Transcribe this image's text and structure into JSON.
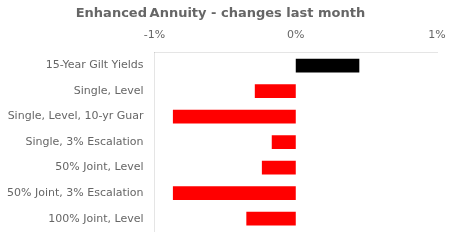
{
  "chart_data": {
    "type": "bar",
    "orientation": "horizontal",
    "title": "Enhanced Annuity - changes last month",
    "categories": [
      "100% Joint, Level",
      "50% Joint, 3% Escalation",
      "50% Joint, Level",
      "Single, 3% Escalation",
      "Single, Level, 10-yr Guar",
      "Single, Level",
      "15-Year Gilt Yields"
    ],
    "values": [
      -0.35,
      -0.87,
      -0.24,
      -0.17,
      -0.87,
      -0.29,
      0.45
    ],
    "colors": [
      "#ff0000",
      "#ff0000",
      "#ff0000",
      "#ff0000",
      "#ff0000",
      "#ff0000",
      "#000000"
    ],
    "xlim": [
      -1.0,
      1.0
    ],
    "xticks": [
      {
        "value": -1.0,
        "label": "-1%"
      },
      {
        "value": 0.0,
        "label": "0%"
      },
      {
        "value": 1.0,
        "label": "1%"
      }
    ],
    "grid": false
  }
}
